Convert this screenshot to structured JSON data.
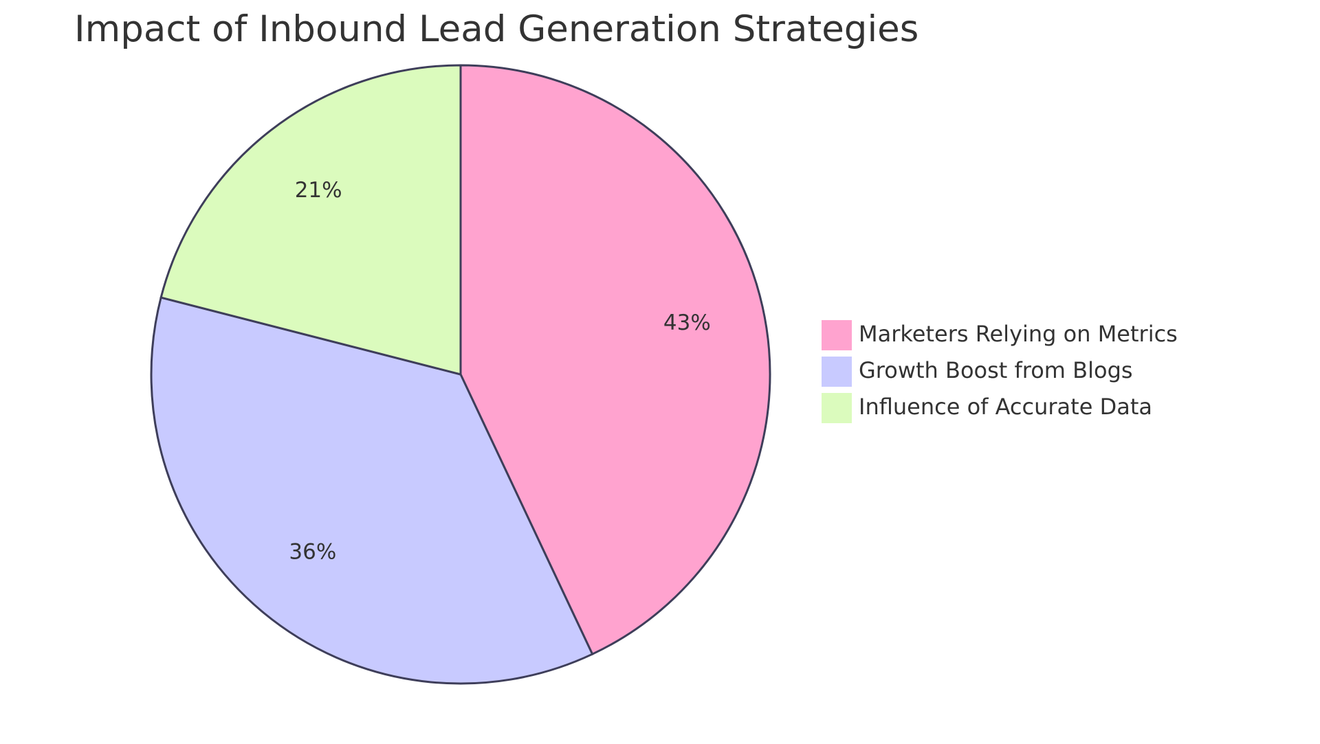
{
  "chart_data": {
    "type": "pie",
    "title": "Impact of Inbound Lead Generation Strategies",
    "slices": [
      {
        "name": "Marketers Relying on Metrics",
        "value": 43,
        "label": "43%",
        "color": "#ffa3cf"
      },
      {
        "name": "Growth Boost from Blogs",
        "value": 36,
        "label": "36%",
        "color": "#c8caff"
      },
      {
        "name": "Influence of Accurate Data",
        "value": 21,
        "label": "21%",
        "color": "#dbfbbd"
      }
    ],
    "legend_position": "right",
    "stroke_color": "#3e3e5a"
  }
}
